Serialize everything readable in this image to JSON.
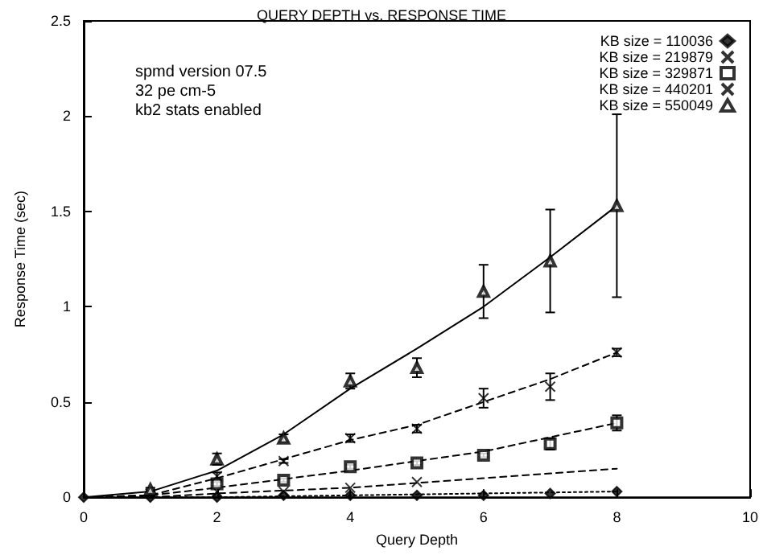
{
  "chart_data": {
    "type": "scatter",
    "title": "QUERY DEPTH vs. RESPONSE TIME",
    "xlabel": "Query Depth",
    "ylabel": "Response Time (sec)",
    "annotations": [
      "spmd version 07.5",
      "32 pe cm-5",
      "kb2 stats enabled"
    ],
    "x": [
      0,
      1,
      2,
      3,
      4,
      5,
      6,
      7,
      8
    ],
    "xlim": [
      0,
      10
    ],
    "xticks": [
      0,
      2,
      4,
      6,
      8,
      10
    ],
    "ylim": [
      0,
      2.5
    ],
    "yticks": [
      0,
      0.5,
      1,
      1.5,
      2,
      2.5
    ],
    "grid": false,
    "legend": "top right",
    "series": [
      {
        "name": "KB size = 110036",
        "marker": "diamond",
        "color": "#000000",
        "values": [
          0,
          0,
          0,
          0.01,
          0.01,
          0.01,
          0.01,
          0.02,
          0.03
        ]
      },
      {
        "name": "KB size = 219879",
        "marker": "cross",
        "color": "#000000",
        "values": [
          null,
          null,
          0.03,
          0.03,
          0.05,
          0.08,
          null,
          null,
          null
        ]
      },
      {
        "name": "KB size = 329871",
        "marker": "square",
        "color": "#000000",
        "values": [
          null,
          null,
          0.07,
          0.09,
          0.16,
          0.18,
          0.22,
          0.28,
          0.39
        ],
        "errors": [
          null,
          null,
          0.01,
          0.01,
          0.01,
          0.01,
          0.01,
          0.03,
          0.04
        ]
      },
      {
        "name": "KB size = 440201",
        "marker": "cross",
        "color": "#000000",
        "values": [
          null,
          0.02,
          0.11,
          0.19,
          0.31,
          0.36,
          0.52,
          0.58,
          0.76
        ],
        "errors": [
          null,
          0.01,
          0.02,
          0.01,
          0.02,
          0.02,
          0.05,
          0.07,
          0.02
        ]
      },
      {
        "name": "KB size = 550049",
        "marker": "triangle",
        "color": "#000000",
        "values": [
          null,
          0.04,
          0.2,
          0.31,
          0.61,
          0.68,
          1.08,
          1.24,
          1.53
        ],
        "errors": [
          null,
          0.01,
          0.03,
          0.02,
          0.04,
          0.05,
          0.14,
          0.27,
          0.48
        ]
      },
      {
        "type": "line",
        "color": "#000000",
        "line_style": "dotted",
        "x": [
          0,
          2,
          4,
          6,
          8
        ],
        "values": [
          0,
          0,
          0.01,
          0.02,
          0.03
        ]
      },
      {
        "type": "line",
        "color": "#000000",
        "line_style": "dashed",
        "x": [
          0,
          1,
          2,
          4,
          6,
          8
        ],
        "values": [
          0,
          0,
          0.02,
          0.05,
          0.1,
          0.15
        ]
      },
      {
        "type": "line",
        "color": "#000000",
        "line_style": "dashed",
        "x": [
          0,
          1,
          2,
          4,
          6,
          8
        ],
        "values": [
          0,
          0.01,
          0.05,
          0.14,
          0.24,
          0.39
        ]
      },
      {
        "type": "line",
        "color": "#000000",
        "line_style": "dashed",
        "x": [
          0,
          1,
          2,
          3,
          4,
          5,
          6,
          7,
          8
        ],
        "values": [
          0,
          0.01,
          0.1,
          0.2,
          0.3,
          0.38,
          0.5,
          0.62,
          0.76
        ]
      },
      {
        "type": "line",
        "color": "#000000",
        "line_style": "solid",
        "x": [
          0,
          1,
          2,
          3,
          4,
          5,
          6,
          7,
          8
        ],
        "values": [
          0,
          0.03,
          0.14,
          0.33,
          0.57,
          0.78,
          1.0,
          1.26,
          1.53
        ]
      }
    ]
  }
}
